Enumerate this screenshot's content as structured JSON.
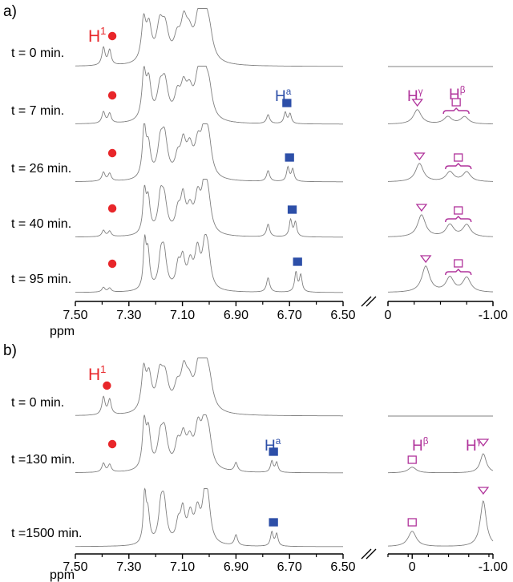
{
  "chart_data": [
    {
      "panel": "a)",
      "type": "line",
      "x_unit": "ppm",
      "left_axis": {
        "ticks": [
          "7.50",
          "7.30",
          "7.10",
          "6.90",
          "6.70",
          "6.50"
        ],
        "range": [
          7.5,
          6.5
        ]
      },
      "right_axis": {
        "ticks": [
          "0",
          "-1.00"
        ],
        "range": [
          0,
          -1.0
        ]
      },
      "series": [
        {
          "label": "t = 0 min.",
          "h1_ppm": 7.38,
          "ha_ppm": null,
          "hgamma_ppm": null,
          "hbeta_ppm": null
        },
        {
          "label": "t = 7 min.",
          "h1_ppm": 7.38,
          "ha_ppm": 6.71,
          "hgamma_ppm": -0.28,
          "hbeta_ppm": -0.65
        },
        {
          "label": "t = 26 min.",
          "h1_ppm": 7.38,
          "ha_ppm": 6.7,
          "hgamma_ppm": -0.3,
          "hbeta_ppm": -0.67
        },
        {
          "label": "t = 40 min.",
          "h1_ppm": 7.38,
          "ha_ppm": 6.69,
          "hgamma_ppm": -0.32,
          "hbeta_ppm": -0.67
        },
        {
          "label": "t = 95 min.",
          "h1_ppm": 7.38,
          "ha_ppm": 6.67,
          "hgamma_ppm": -0.36,
          "hbeta_ppm": -0.67
        }
      ],
      "labels": {
        "h1": "H",
        "h1_sup": "1",
        "ha": "H",
        "ha_sup": "a",
        "hgamma": "H",
        "hgamma_sup": "γ",
        "hbeta": "H",
        "hbeta_sup": "β"
      }
    },
    {
      "panel": "b)",
      "type": "line",
      "x_unit": "ppm",
      "left_axis": {
        "ticks": [
          "7.50",
          "7.30",
          "7.10",
          "6.90",
          "6.70",
          "6.50"
        ],
        "range": [
          7.5,
          6.5
        ]
      },
      "right_axis": {
        "ticks": [
          "0",
          "-1.00"
        ],
        "range": [
          0.3,
          -1.0
        ]
      },
      "series": [
        {
          "label": "t = 0 min.",
          "h1_ppm": 7.4,
          "ha_ppm": null,
          "hgamma_ppm": null,
          "hbeta_ppm": null
        },
        {
          "label": "t =130 min.",
          "h1_ppm": 7.38,
          "ha_ppm": 6.76,
          "hgamma_ppm": -0.88,
          "hbeta_ppm": 0.0
        },
        {
          "label": "t =1500 min.",
          "h1_ppm": null,
          "ha_ppm": 6.76,
          "hgamma_ppm": -0.88,
          "hbeta_ppm": 0.0
        }
      ],
      "labels": {
        "h1": "H",
        "h1_sup": "1",
        "ha": "H",
        "ha_sup": "a",
        "hgamma": "H",
        "hgamma_sup": "γ",
        "hbeta": "H",
        "hbeta_sup": "β"
      }
    }
  ],
  "colors": {
    "h1": "#e8262a",
    "ha": "#2d4fa8",
    "hgreek": "#b0339b",
    "trace": "#808080",
    "axis": "#000000"
  }
}
